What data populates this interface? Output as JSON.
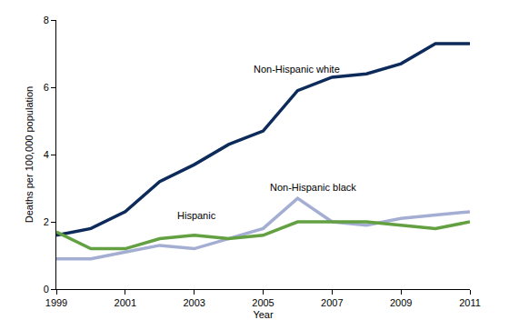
{
  "chart_data": {
    "type": "line",
    "x": [
      1999,
      2000,
      2001,
      2002,
      2003,
      2004,
      2005,
      2006,
      2007,
      2008,
      2009,
      2010,
      2011
    ],
    "series": [
      {
        "name": "Non-Hispanic white",
        "color": "#0d2b5a",
        "values": [
          1.6,
          1.8,
          2.3,
          3.2,
          3.7,
          4.3,
          4.7,
          5.9,
          6.3,
          6.4,
          6.7,
          7.3,
          7.3
        ]
      },
      {
        "name": "Non-Hispanic black",
        "color": "#a4aed3",
        "values": [
          0.9,
          0.9,
          1.1,
          1.3,
          1.2,
          1.5,
          1.8,
          2.7,
          2.0,
          1.9,
          2.1,
          2.2,
          2.3
        ]
      },
      {
        "name": "Hispanic",
        "color": "#62a041",
        "values": [
          1.7,
          1.2,
          1.2,
          1.5,
          1.6,
          1.5,
          1.6,
          2.0,
          2.0,
          2.0,
          1.9,
          1.8,
          2.0
        ]
      }
    ],
    "x_label": "Year",
    "y_label": "Deaths per 100,000 population",
    "xlim": [
      1999,
      2011
    ],
    "xticks": [
      1999,
      2001,
      2003,
      2005,
      2007,
      2009,
      2011
    ],
    "ylim": [
      0,
      8
    ],
    "yticks": [
      0,
      2,
      4,
      6,
      8
    ],
    "grid": false
  }
}
